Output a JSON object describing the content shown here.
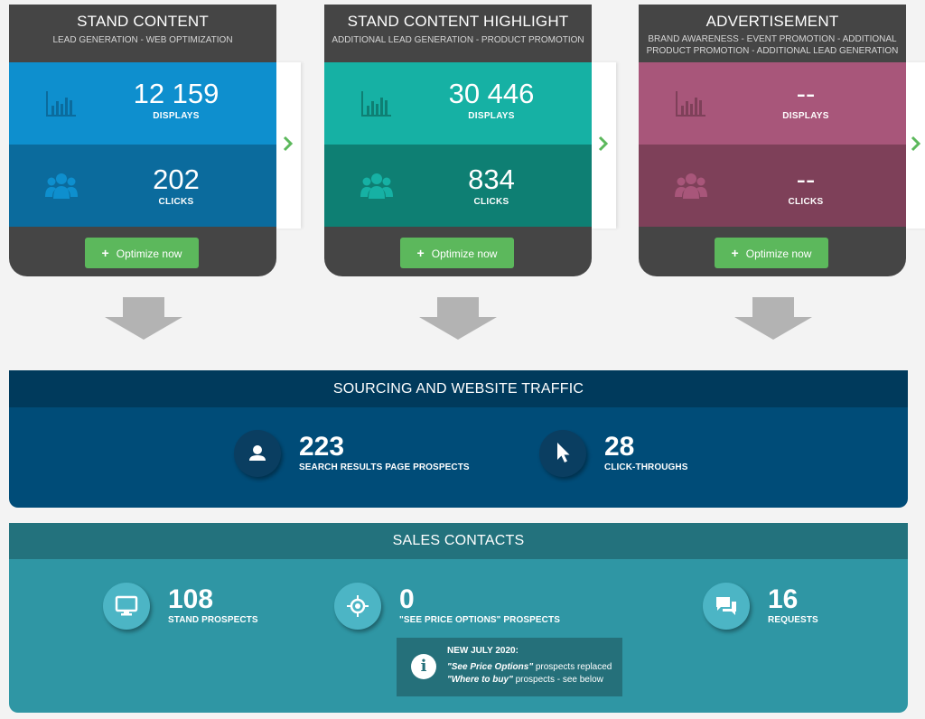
{
  "cards": [
    {
      "title": "STAND CONTENT",
      "subtitle": "LEAD GENERATION - WEB OPTIMIZATION",
      "displays_value": "12 159",
      "displays_label": "DISPLAYS",
      "clicks_value": "202",
      "clicks_label": "CLICKS",
      "button_label": "Optimize now",
      "colors": {
        "top": "#0e8fce",
        "bottom": "#0b6b9d",
        "icon": "#0b6b9d"
      }
    },
    {
      "title": "STAND CONTENT HIGHLIGHT",
      "subtitle": "ADDITIONAL LEAD GENERATION - PRODUCT PROMOTION",
      "displays_value": "30 446",
      "displays_label": "DISPLAYS",
      "clicks_value": "834",
      "clicks_label": "CLICKS",
      "button_label": "Optimize now",
      "colors": {
        "top": "#16b1a4",
        "bottom": "#0e7f73",
        "icon": "#0e7f73"
      }
    },
    {
      "title": "ADVERTISEMENT",
      "subtitle": "BRAND AWARENESS - EVENT PROMOTION - ADDITIONAL PRODUCT PROMOTION - ADDITIONAL LEAD GENERATION",
      "displays_value": "--",
      "displays_label": "DISPLAYS",
      "clicks_value": "--",
      "clicks_label": "CLICKS",
      "button_label": "Optimize now",
      "colors": {
        "top": "#a8567a",
        "bottom": "#7e4059",
        "icon": "#7e4059"
      }
    }
  ],
  "icons": {
    "displays": "bar-chart-icon",
    "clicks": "users-icon",
    "next": "chevron-right-icon",
    "plus": "plus-icon"
  },
  "sourcing": {
    "title": "SOURCING AND WEBSITE TRAFFIC",
    "stats": [
      {
        "value": "223",
        "label": "SEARCH RESULTS PAGE PROSPECTS",
        "icon": "user-icon"
      },
      {
        "value": "28",
        "label": "CLICK-THROUGHS",
        "icon": "cursor-icon"
      }
    ]
  },
  "sales": {
    "title": "SALES CONTACTS",
    "stats": [
      {
        "value": "108",
        "label": "STAND PROSPECTS",
        "icon": "monitor-icon"
      },
      {
        "value": "0",
        "label": "\"SEE PRICE OPTIONS\" PROSPECTS",
        "icon": "target-icon"
      },
      {
        "value": "16",
        "label": "REQUESTS",
        "icon": "chat-icon"
      }
    ],
    "note": {
      "title": "NEW JULY 2020:",
      "line1_strong": "\"See Price Options\"",
      "line1_rest": " prospects replaced",
      "line2_strong": "\"Where to buy\"",
      "line2_rest": " prospects - see below",
      "icon": "info-icon"
    }
  },
  "colors": {
    "accent_green": "#5cb85c",
    "sourcing_bg": "#004c78",
    "sales_bg": "#2f96a4"
  }
}
